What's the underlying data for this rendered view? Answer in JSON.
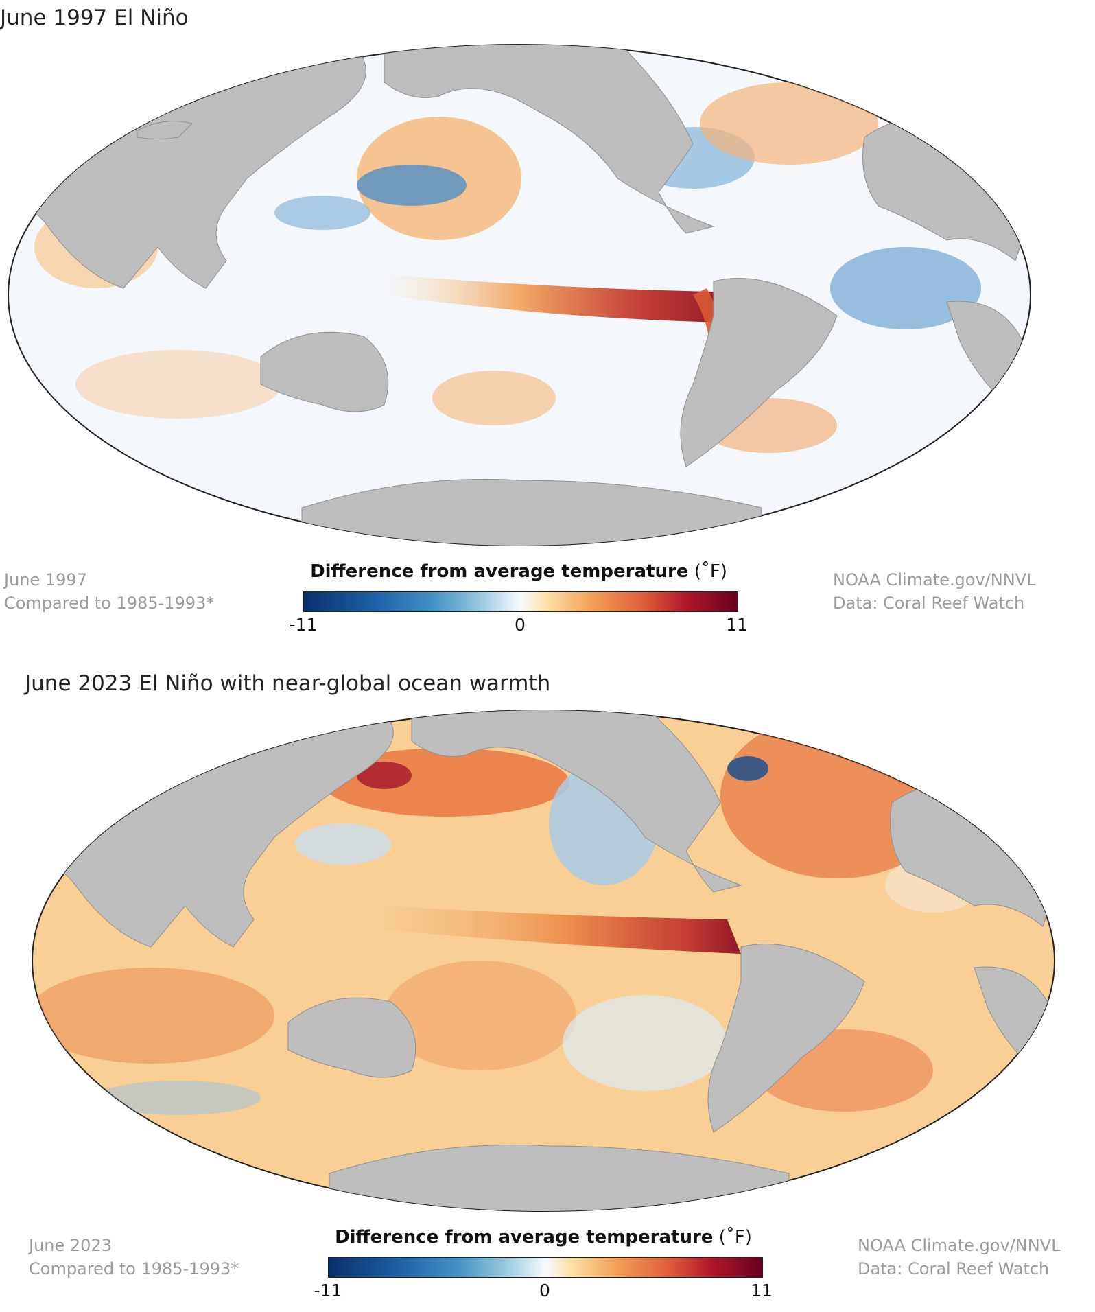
{
  "panels": [
    {
      "title": "June 1997 El Niño",
      "meta_left": [
        "June 1997",
        "Compared to 1985-1993*"
      ],
      "meta_right": [
        "NOAA Climate.gov/NNVL",
        "Data: Coral Reef Watch"
      ],
      "legend": {
        "title": "Difference from average temperature",
        "unit": "(˚F)",
        "ticks": [
          "-11",
          "0",
          "11"
        ]
      }
    },
    {
      "title": "June 2023 El Niño with near-global ocean warmth",
      "meta_left": [
        "June 2023",
        "Compared to 1985-1993*"
      ],
      "meta_right": [
        "NOAA Climate.gov/NNVL",
        "Data: Coral Reef Watch"
      ],
      "legend": {
        "title": "Difference from average temperature",
        "unit": "(˚F)",
        "ticks": [
          "-11",
          "0",
          "11"
        ]
      }
    }
  ],
  "colors": {
    "land": "#bdbdbd",
    "ocean_neutral": "#f4f7fb",
    "cool": "#4f8fc6",
    "warm": "#f3a55a",
    "hot": "#b8202b"
  }
}
